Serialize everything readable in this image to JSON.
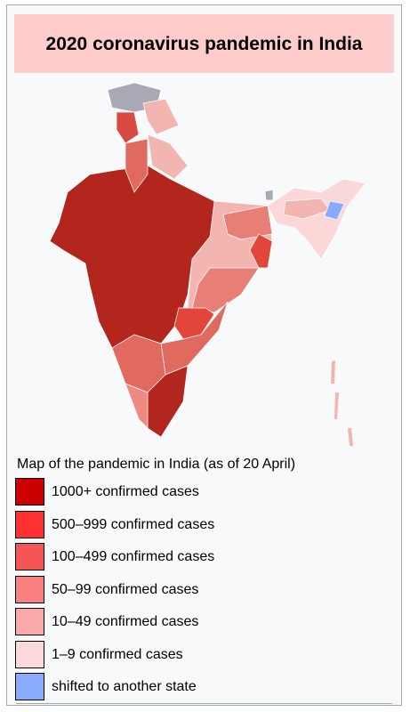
{
  "header": {
    "title": "2020 coronavirus pandemic in India"
  },
  "map": {
    "caption": "Map of the pandemic in India (as of 20 April)",
    "legend": [
      {
        "label": "1000+ confirmed cases",
        "color": "#cc0000"
      },
      {
        "label": "500–999 confirmed cases",
        "color": "#ff3030"
      },
      {
        "label": "100–499 confirmed cases",
        "color": "#f55555"
      },
      {
        "label": "50–99 confirmed cases",
        "color": "#f88080"
      },
      {
        "label": "10–49 confirmed cases",
        "color": "#fba8a8"
      },
      {
        "label": "1–9 confirmed cases",
        "color": "#fdd8d8"
      },
      {
        "label": "shifted to another state",
        "color": "#88aaff"
      }
    ]
  }
}
